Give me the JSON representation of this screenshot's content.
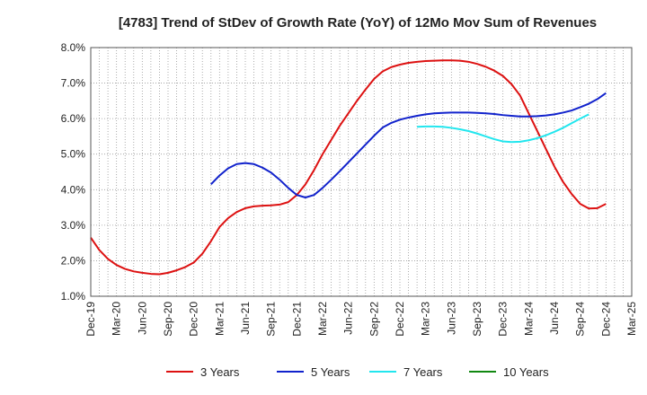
{
  "chart_data": {
    "type": "line",
    "title": "[4783]  Trend of StDev of Growth Rate (YoY) of 12Mo Mov Sum of Revenues",
    "xlabel": "",
    "ylabel": "",
    "ylim": [
      1.0,
      8.0
    ],
    "y_ticks": [
      "1.0%",
      "2.0%",
      "3.0%",
      "4.0%",
      "5.0%",
      "6.0%",
      "7.0%",
      "8.0%"
    ],
    "x_tick_labels": [
      "Dec-19",
      "Mar-20",
      "Jun-20",
      "Sep-20",
      "Dec-20",
      "Mar-21",
      "Jun-21",
      "Sep-21",
      "Dec-21",
      "Mar-22",
      "Jun-22",
      "Sep-22",
      "Dec-22",
      "Mar-23",
      "Jun-23",
      "Sep-23",
      "Dec-23",
      "Mar-24",
      "Jun-24",
      "Sep-24",
      "Dec-24",
      "Mar-25"
    ],
    "grid": true,
    "legend_position": "bottom",
    "series": [
      {
        "name": "3 Years",
        "color": "#dd1111",
        "start_index": 0,
        "values": [
          2.65,
          2.3,
          2.05,
          1.88,
          1.77,
          1.7,
          1.66,
          1.63,
          1.62,
          1.66,
          1.73,
          1.82,
          1.95,
          2.2,
          2.55,
          2.95,
          3.2,
          3.37,
          3.48,
          3.53,
          3.55,
          3.56,
          3.58,
          3.65,
          3.85,
          4.15,
          4.55,
          5.0,
          5.4,
          5.8,
          6.15,
          6.5,
          6.82,
          7.12,
          7.33,
          7.45,
          7.52,
          7.57,
          7.6,
          7.62,
          7.63,
          7.64,
          7.64,
          7.63,
          7.6,
          7.54,
          7.46,
          7.35,
          7.2,
          6.97,
          6.65,
          6.15,
          5.65,
          5.15,
          4.65,
          4.22,
          3.88,
          3.6,
          3.47,
          3.48,
          3.6
        ]
      },
      {
        "name": "5 Years",
        "color": "#1122cc",
        "start_index": 14,
        "values": [
          4.15,
          4.4,
          4.6,
          4.72,
          4.75,
          4.72,
          4.62,
          4.48,
          4.28,
          4.05,
          3.85,
          3.78,
          3.85,
          4.05,
          4.28,
          4.52,
          4.77,
          5.02,
          5.27,
          5.52,
          5.75,
          5.88,
          5.97,
          6.03,
          6.08,
          6.12,
          6.15,
          6.16,
          6.17,
          6.17,
          6.17,
          6.16,
          6.15,
          6.13,
          6.1,
          6.08,
          6.06,
          6.06,
          6.07,
          6.09,
          6.12,
          6.17,
          6.23,
          6.32,
          6.42,
          6.55,
          6.72
        ]
      },
      {
        "name": "7 Years",
        "color": "#22e6ee",
        "start_index": 38,
        "values": [
          5.77,
          5.78,
          5.78,
          5.77,
          5.74,
          5.7,
          5.65,
          5.58,
          5.5,
          5.42,
          5.36,
          5.34,
          5.35,
          5.39,
          5.45,
          5.53,
          5.63,
          5.74,
          5.87,
          6.0,
          6.12
        ]
      },
      {
        "name": "10 Years",
        "color": "#118811",
        "start_index": 0,
        "values": []
      }
    ]
  }
}
